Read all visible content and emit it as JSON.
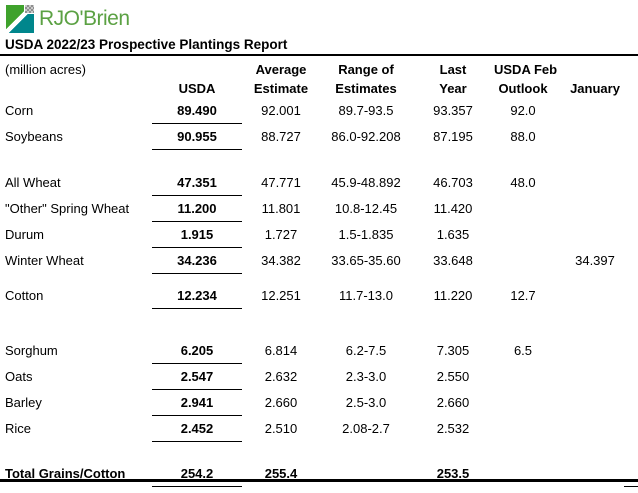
{
  "logo": {
    "text": "RJO'Brien",
    "green": "#5ba143",
    "mark_green": "#3fa22c",
    "mark_teal": "#00868c"
  },
  "title": "USDA 2022/23 Prospective Plantings Report",
  "table": {
    "unit_label": "(million acres)",
    "headers": {
      "usda": "USDA",
      "avg1": "Average",
      "avg2": "Estimate",
      "range1": "Range of",
      "range2": "Estimates",
      "last1": "Last",
      "last2": "Year",
      "feb1": "USDA Feb",
      "feb2": "Outlook",
      "jan": "January"
    },
    "rows": [
      {
        "label": "Corn",
        "usda": "89.490",
        "avg": "92.001",
        "range": "89.7-93.5",
        "last": "93.357",
        "feb": "92.0",
        "jan": ""
      },
      {
        "label": "Soybeans",
        "usda": "90.955",
        "avg": "88.727",
        "range": "86.0-92.208",
        "last": "87.195",
        "feb": "88.0",
        "jan": ""
      },
      {
        "spacer": 20
      },
      {
        "label": "All Wheat",
        "usda": "47.351",
        "avg": "47.771",
        "range": "45.9-48.892",
        "last": "46.703",
        "feb": "48.0",
        "jan": ""
      },
      {
        "label": "\"Other\" Spring Wheat",
        "usda": "11.200",
        "avg": "11.801",
        "range": "10.8-12.45",
        "last": "11.420",
        "feb": "",
        "jan": ""
      },
      {
        "label": "Durum",
        "usda": "1.915",
        "avg": "1.727",
        "range": "1.5-1.835",
        "last": "1.635",
        "feb": "",
        "jan": ""
      },
      {
        "label": "Winter Wheat",
        "usda": "34.236",
        "avg": "34.382",
        "range": "33.65-35.60",
        "last": "33.648",
        "feb": "",
        "jan": "34.397"
      },
      {
        "spacer": 10
      },
      {
        "label": "Cotton",
        "usda": "12.234",
        "avg": "12.251",
        "range": "11.7-13.0",
        "last": "11.220",
        "feb": "12.7",
        "jan": ""
      },
      {
        "spacer": 29
      },
      {
        "label": "Sorghum",
        "usda": "6.205",
        "avg": "6.814",
        "range": "6.2-7.5",
        "last": "7.305",
        "feb": "6.5",
        "jan": ""
      },
      {
        "label": "Oats",
        "usda": "2.547",
        "avg": "2.632",
        "range": "2.3-3.0",
        "last": "2.550",
        "feb": "",
        "jan": ""
      },
      {
        "label": "Barley",
        "usda": "2.941",
        "avg": "2.660",
        "range": "2.5-3.0",
        "last": "2.660",
        "feb": "",
        "jan": ""
      },
      {
        "label": "Rice",
        "usda": "2.452",
        "avg": "2.510",
        "range": "2.08-2.7",
        "last": "2.532",
        "feb": "",
        "jan": ""
      },
      {
        "spacer": 20
      },
      {
        "label": "Total Grains/Cotton",
        "usda": "254.2",
        "avg": "255.4",
        "range": "",
        "last": "253.5",
        "feb": "",
        "jan": "",
        "total": true,
        "jan_underline": true
      }
    ]
  }
}
